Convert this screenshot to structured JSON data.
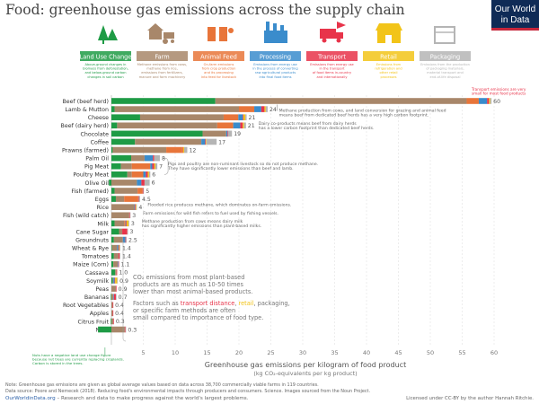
{
  "title": "Food: greenhouse gas emissions across the supply chain",
  "logo": {
    "line1": "Our World",
    "line2": "in Data"
  },
  "stages": [
    {
      "name": "Land Use Change",
      "color": "#1e9b45",
      "icon": "tree-icon",
      "desc": [
        "Above-ground changes in",
        "biomass from deforestation,",
        "and below-ground carbon",
        "changes in soil carbon"
      ]
    },
    {
      "name": "Farm",
      "color": "#a8876a",
      "icon": "tractor-icon",
      "desc": [
        "Methane emissions from cows,",
        "methane from rice,",
        "emissions from fertilizers,",
        "manure and farm machinery"
      ]
    },
    {
      "name": "Animal Feed",
      "color": "#e8753a",
      "icon": "feed-icon",
      "desc": [
        "On-farm emissions",
        "from crop production",
        "and its processing",
        "into feed for livestock"
      ]
    },
    {
      "name": "Processing",
      "color": "#3a8ccc",
      "icon": "factory-icon",
      "desc": [
        "Emissions from energy use",
        "in the process of converting",
        "raw agricultural products",
        "into final food items"
      ]
    },
    {
      "name": "Transport",
      "color": "#e8344a",
      "icon": "truck-icon",
      "desc": [
        "Emissions from energy use",
        "in the transport",
        "of food items in-country",
        "and internationally"
      ]
    },
    {
      "name": "Retail",
      "color": "#f2c419",
      "icon": "shop-icon",
      "desc": [
        "Emissions from",
        "refrigeration and",
        "other retail",
        "processes"
      ]
    },
    {
      "name": "Packaging",
      "color": "#b5b5b5",
      "icon": "package-icon",
      "desc": [
        "Emissions from the production",
        "of packaging materials,",
        "material transport and",
        "end-of-life disposal"
      ]
    }
  ],
  "chart_data": {
    "type": "bar",
    "stacked": true,
    "orientation": "horizontal",
    "xlabel": "Greenhouse gas emissions per kilogram of food product",
    "xlabel2": "(kg CO₂-equivalents per kg product)",
    "xlim": [
      -5,
      60
    ],
    "xticks": [
      5,
      10,
      15,
      20,
      25,
      30,
      35,
      40,
      45,
      50,
      55,
      60
    ],
    "grid": true,
    "series_order": [
      "Land Use Change",
      "Farm",
      "Animal Feed",
      "Processing",
      "Transport",
      "Retail",
      "Packaging"
    ],
    "items": [
      {
        "name": "Beef (beef herd)",
        "total": "60",
        "values": [
          16.3,
          39.4,
          1.9,
          1.3,
          0.3,
          0.2,
          0.2
        ]
      },
      {
        "name": "Lamb & Mutton",
        "total": "24",
        "values": [
          0.5,
          19.5,
          2.4,
          1.1,
          0.5,
          0.2,
          0.3
        ]
      },
      {
        "name": "Cheese",
        "total": "21",
        "values": [
          4.5,
          13.1,
          2.3,
          0.7,
          0.1,
          0.3,
          0.2
        ]
      },
      {
        "name": "Beef (dairy herd)",
        "total": "21",
        "values": [
          0.9,
          15.7,
          2.5,
          1.1,
          0.4,
          0.2,
          0.3
        ]
      },
      {
        "name": "Chocolate",
        "total": "19",
        "values": [
          14.3,
          3.7,
          0.0,
          0.2,
          0.1,
          0.0,
          0.6
        ]
      },
      {
        "name": "Coffee",
        "total": "17",
        "values": [
          3.7,
          10.4,
          0.0,
          0.6,
          0.1,
          0.1,
          1.6
        ]
      },
      {
        "name": "Prawns (farmed)",
        "total": "12",
        "values": [
          0.2,
          8.4,
          2.5,
          0.0,
          0.1,
          0.2,
          0.5
        ]
      },
      {
        "name": "Palm Oil",
        "total": "8",
        "values": [
          3.1,
          2.1,
          0.0,
          1.3,
          0.2,
          0.0,
          0.9
        ]
      },
      {
        "name": "Pig Meat",
        "total": "7",
        "values": [
          1.5,
          1.7,
          2.9,
          0.3,
          0.3,
          0.2,
          0.3
        ]
      },
      {
        "name": "Poultry Meat",
        "total": "6",
        "values": [
          2.5,
          0.7,
          1.8,
          0.4,
          0.3,
          0.2,
          0.2
        ]
      },
      {
        "name": "Olive Oil",
        "total": "6",
        "values": [
          -0.4,
          4.0,
          0.0,
          0.7,
          0.5,
          0.0,
          0.8
        ]
      },
      {
        "name": "Fish (farmed)",
        "total": "5",
        "values": [
          0.5,
          3.6,
          0.8,
          0.0,
          0.1,
          0.0,
          0.1
        ]
      },
      {
        "name": "Eggs",
        "total": "4.5",
        "values": [
          0.7,
          1.3,
          2.2,
          0.0,
          0.1,
          0.0,
          0.2
        ]
      },
      {
        "name": "Rice",
        "total": "4",
        "values": [
          0.0,
          3.6,
          0.0,
          0.1,
          0.1,
          0.1,
          0.1
        ]
      },
      {
        "name": "Fish (wild catch)",
        "total": "3",
        "values": [
          0.0,
          2.8,
          0.0,
          0.0,
          0.1,
          0.0,
          0.1
        ]
      },
      {
        "name": "Milk",
        "total": "3",
        "values": [
          0.5,
          1.5,
          0.2,
          0.1,
          0.1,
          0.3,
          0.1
        ]
      },
      {
        "name": "Cane Sugar",
        "total": "3",
        "values": [
          1.2,
          0.5,
          0.0,
          0.0,
          0.8,
          0.0,
          0.1
        ]
      },
      {
        "name": "Groundnuts",
        "total": "2.5",
        "values": [
          0.4,
          1.4,
          0.0,
          0.4,
          0.1,
          0.0,
          0.1
        ]
      },
      {
        "name": "Wheat & Rye",
        "total": "1.4",
        "values": [
          0.1,
          0.8,
          0.0,
          0.2,
          0.1,
          0.1,
          0.1
        ]
      },
      {
        "name": "Tomatoes",
        "total": "1.4",
        "values": [
          0.4,
          0.7,
          0.0,
          0.0,
          0.2,
          0.0,
          0.1
        ]
      },
      {
        "name": "Maize (Corn)",
        "total": "1.1",
        "values": [
          0.3,
          0.7,
          0.0,
          0.1,
          0.1,
          0.0,
          0.0
        ]
      },
      {
        "name": "Cassava",
        "total": "1.0",
        "values": [
          0.6,
          0.2,
          0.0,
          0.0,
          0.1,
          0.0,
          0.0
        ]
      },
      {
        "name": "Soymilk",
        "total": "0.9",
        "values": [
          0.2,
          0.1,
          0.0,
          0.2,
          0.1,
          0.3,
          0.1
        ]
      },
      {
        "name": "Peas",
        "total": "0.9",
        "values": [
          0.0,
          0.7,
          0.0,
          0.0,
          0.1,
          0.0,
          0.0
        ]
      },
      {
        "name": "Bananas",
        "total": "0.7",
        "values": [
          -0.1,
          0.3,
          0.0,
          0.1,
          0.3,
          0.0,
          0.1
        ]
      },
      {
        "name": "Root Vegetables",
        "total": "0.4",
        "values": [
          0.0,
          0.2,
          0.0,
          0.0,
          0.1,
          0.0,
          0.0
        ]
      },
      {
        "name": "Apples",
        "total": "0.4",
        "values": [
          0.0,
          0.2,
          0.0,
          0.0,
          0.1,
          0.0,
          0.0
        ]
      },
      {
        "name": "Citrus Fruit",
        "total": "0.3",
        "values": [
          -0.1,
          0.3,
          0.0,
          0.0,
          0.1,
          0.0,
          0.0
        ]
      },
      {
        "name": "Nuts",
        "total": "0.3",
        "values": [
          -2.1,
          2.1,
          0.0,
          0.0,
          0.1,
          0.0,
          0.1
        ]
      }
    ],
    "annotations": [
      {
        "row": 0,
        "lines": [
          "Methane production from cows, and land conversion for grazing and animal feed",
          "means beef from dedicated beef herds has a very high carbon footprint."
        ]
      },
      {
        "row": 3,
        "lines": [
          "Dairy co-products means beef from dairy herds",
          "has a lower carbon footprint than dedicated beef herds."
        ]
      },
      {
        "row": 8,
        "lines": [
          "Pigs and poultry are non-ruminant livestock so do not produce methane.",
          "They have significantly lower emissions than beef and lamb."
        ]
      },
      {
        "row": 13,
        "lines": [
          "Flooded rice produces methane, which dominates on-farm emissions."
        ]
      },
      {
        "row": 14,
        "lines": [
          "Farm emissions for wild fish refers to fuel used by fishing vessels."
        ]
      },
      {
        "row": 15,
        "lines": [
          "Methane production from cows means dairy milk",
          "has significantly higher emissions than plant-based milks."
        ]
      }
    ],
    "note_transport": [
      "Transport emissions are very",
      "small for most food products"
    ],
    "note_plant1": [
      "CO₂ emissions from most plant-based",
      "products are as much as 10-50 times",
      "lower than most animal-based products."
    ],
    "note_plant2": {
      "pre": "Factors such as ",
      "transport": "transport distance",
      "sep": ", ",
      "retail": "retail",
      "rest": ", packaging,",
      "line2": "or specific farm methods are often",
      "line3": "small compared to importance of food type."
    },
    "note_nuts": [
      "Nuts have a negative land use change figure",
      "because nut trees are currently replacing croplands.",
      "Carbon is stored in the trees."
    ]
  },
  "footer": {
    "note": "Note: Greenhouse gas emissions are given as global average values based on data across 38,700 commercially viable farms in 119 countries.",
    "source": "Data source: Poore and Nemecek (2018). Reducing food's environmental impacts through producers and consumers. Science. Images sourced from the Noun Project.",
    "site": "OurWorldinData.org",
    "tagline": " – Research and data to make progress against the world's largest problems.",
    "license": "Licensed under CC-BY by the author Hannah Ritchie."
  }
}
